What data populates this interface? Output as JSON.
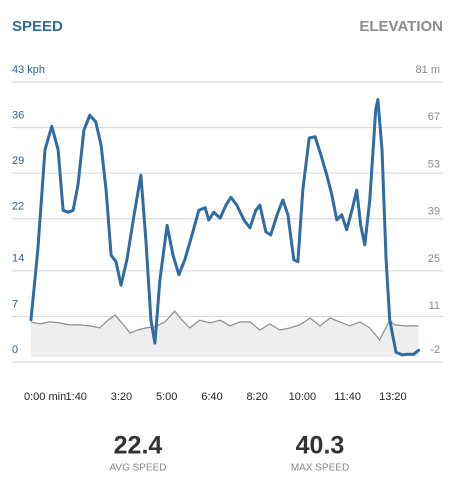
{
  "chart_data": {
    "type": "line",
    "series": [
      {
        "name": "SPEED",
        "color": "#2f6ca3",
        "x": [
          0,
          15,
          31,
          46,
          60,
          71,
          82,
          93,
          104,
          117,
          130,
          143,
          155,
          166,
          177,
          188,
          199,
          212,
          228,
          243,
          254,
          265,
          274,
          285,
          301,
          314,
          327,
          340,
          356,
          371,
          385,
          393,
          404,
          418,
          431,
          442,
          455,
          471,
          484,
          497,
          506,
          519,
          530,
          544,
          557,
          568,
          581,
          590,
          601,
          615,
          628,
          641,
          654,
          665,
          676,
          687,
          698,
          711,
          720,
          729,
          738,
          749,
          762,
          767,
          776,
          785,
          793,
          807,
          820,
          833,
          846,
          857
        ],
        "values": [
          6.5,
          17.2,
          32.6,
          36.2,
          32.6,
          23.3,
          23.0,
          23.3,
          27.2,
          35.6,
          37.9,
          36.9,
          33.3,
          26.4,
          16.4,
          15.4,
          11.8,
          15.7,
          22.6,
          28.7,
          18.7,
          6.5,
          2.9,
          12.6,
          21.0,
          16.4,
          13.4,
          15.7,
          19.5,
          23.3,
          23.7,
          21.8,
          23.0,
          22.1,
          24.1,
          25.3,
          24.1,
          21.8,
          20.6,
          23.3,
          24.1,
          20.0,
          19.5,
          22.6,
          24.9,
          22.6,
          15.7,
          15.4,
          26.4,
          34.4,
          34.6,
          31.8,
          28.7,
          25.7,
          21.8,
          22.6,
          20.3,
          23.7,
          26.4,
          21.0,
          18.0,
          24.9,
          38.7,
          40.3,
          32.6,
          15.7,
          6.5,
          1.5,
          1.1,
          1.2,
          1.2,
          1.8
        ]
      },
      {
        "name": "ELEVATION",
        "color": "#8c8c8c",
        "axis": "y2",
        "x": [
          0,
          20,
          42,
          64,
          86,
          108,
          130,
          152,
          170,
          186,
          201,
          219,
          236,
          254,
          274,
          296,
          318,
          334,
          351,
          373,
          396,
          418,
          440,
          462,
          484,
          506,
          528,
          550,
          572,
          594,
          617,
          639,
          661,
          683,
          705,
          727,
          749,
          771,
          782,
          793,
          804,
          827,
          857
        ],
        "values": [
          9.9,
          9.3,
          9.9,
          9.6,
          9.0,
          9.0,
          8.7,
          8.1,
          10.4,
          11.9,
          9.6,
          6.6,
          7.5,
          8.1,
          8.4,
          9.9,
          13.1,
          10.4,
          8.1,
          10.4,
          9.6,
          10.4,
          8.7,
          9.9,
          9.9,
          7.5,
          9.3,
          7.5,
          8.1,
          9.0,
          11.0,
          8.7,
          11.0,
          9.9,
          8.7,
          9.9,
          8.1,
          4.5,
          7.5,
          10.4,
          9.0,
          8.7,
          8.7
        ]
      }
    ],
    "xlim": [
      0,
      860
    ],
    "xticks": [
      {
        "value": 0,
        "label": "0:00 min"
      },
      {
        "value": 100,
        "label": "1:40"
      },
      {
        "value": 200,
        "label": "3:20"
      },
      {
        "value": 300,
        "label": "5:00"
      },
      {
        "value": 400,
        "label": "6:40"
      },
      {
        "value": 500,
        "label": "8:20"
      },
      {
        "value": 600,
        "label": "10:00"
      },
      {
        "value": 700,
        "label": "11:40"
      },
      {
        "value": 800,
        "label": "13:20"
      }
    ],
    "ylim": [
      0,
      43
    ],
    "yticks": [
      0,
      7,
      14,
      22,
      29,
      36,
      {
        "value": 43,
        "label": "43 kph"
      }
    ],
    "y2lim": [
      -2,
      81
    ],
    "y2ticks": [
      -2,
      11,
      25,
      39,
      53,
      67,
      {
        "value": 81,
        "label": "81 m"
      }
    ],
    "grid": true,
    "stats": [
      {
        "value": 22.4,
        "label": "AVG SPEED"
      },
      {
        "value": 40.3,
        "label": "MAX SPEED"
      }
    ]
  }
}
